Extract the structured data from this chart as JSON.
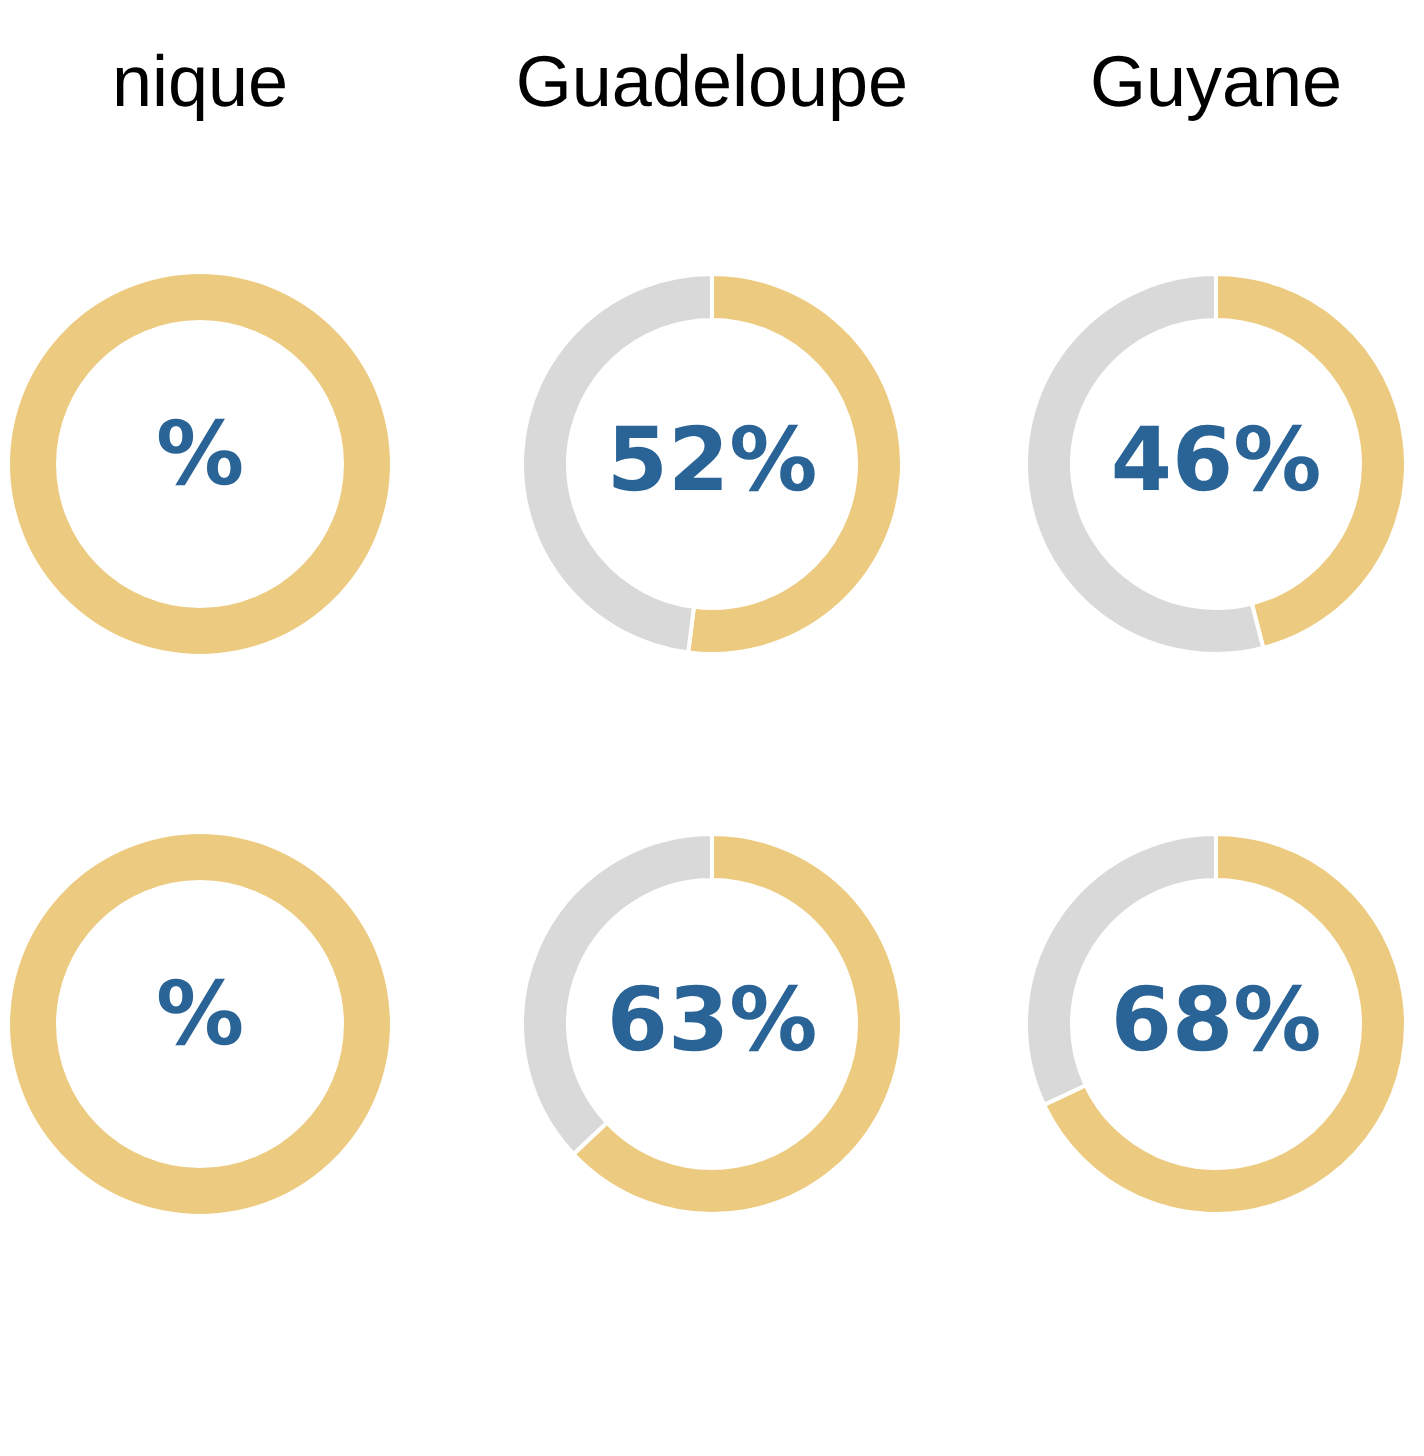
{
  "chart_data": [
    {
      "type": "other",
      "title": "nique",
      "annotations": [
        "%"
      ]
    },
    {
      "type": "donut",
      "title": "Guadeloupe",
      "categories": [
        null,
        null
      ],
      "values": [
        52,
        48
      ],
      "colors": [
        "#ecca7f",
        "#d9d9d9"
      ],
      "value_labels": [
        "52%",
        null
      ]
    },
    {
      "type": "donut",
      "title": "Guyane",
      "categories": [
        null,
        null
      ],
      "values": [
        46,
        54
      ],
      "colors": [
        "#ecca7f",
        "#d9d9d9"
      ],
      "value_labels": [
        "46%",
        null
      ]
    },
    {
      "type": "other",
      "annotations": [
        "%"
      ]
    },
    {
      "type": "donut",
      "categories": [
        null,
        null
      ],
      "values": [
        63,
        37
      ],
      "colors": [
        "#ecca7f",
        "#d9d9d9"
      ],
      "value_labels": [
        "63%",
        null
      ]
    },
    {
      "type": "donut",
      "categories": [
        null,
        null
      ],
      "values": [
        68,
        32
      ],
      "colors": [
        "#ecca7f",
        "#d9d9d9"
      ],
      "value_labels": [
        "68%",
        null
      ]
    }
  ]
}
